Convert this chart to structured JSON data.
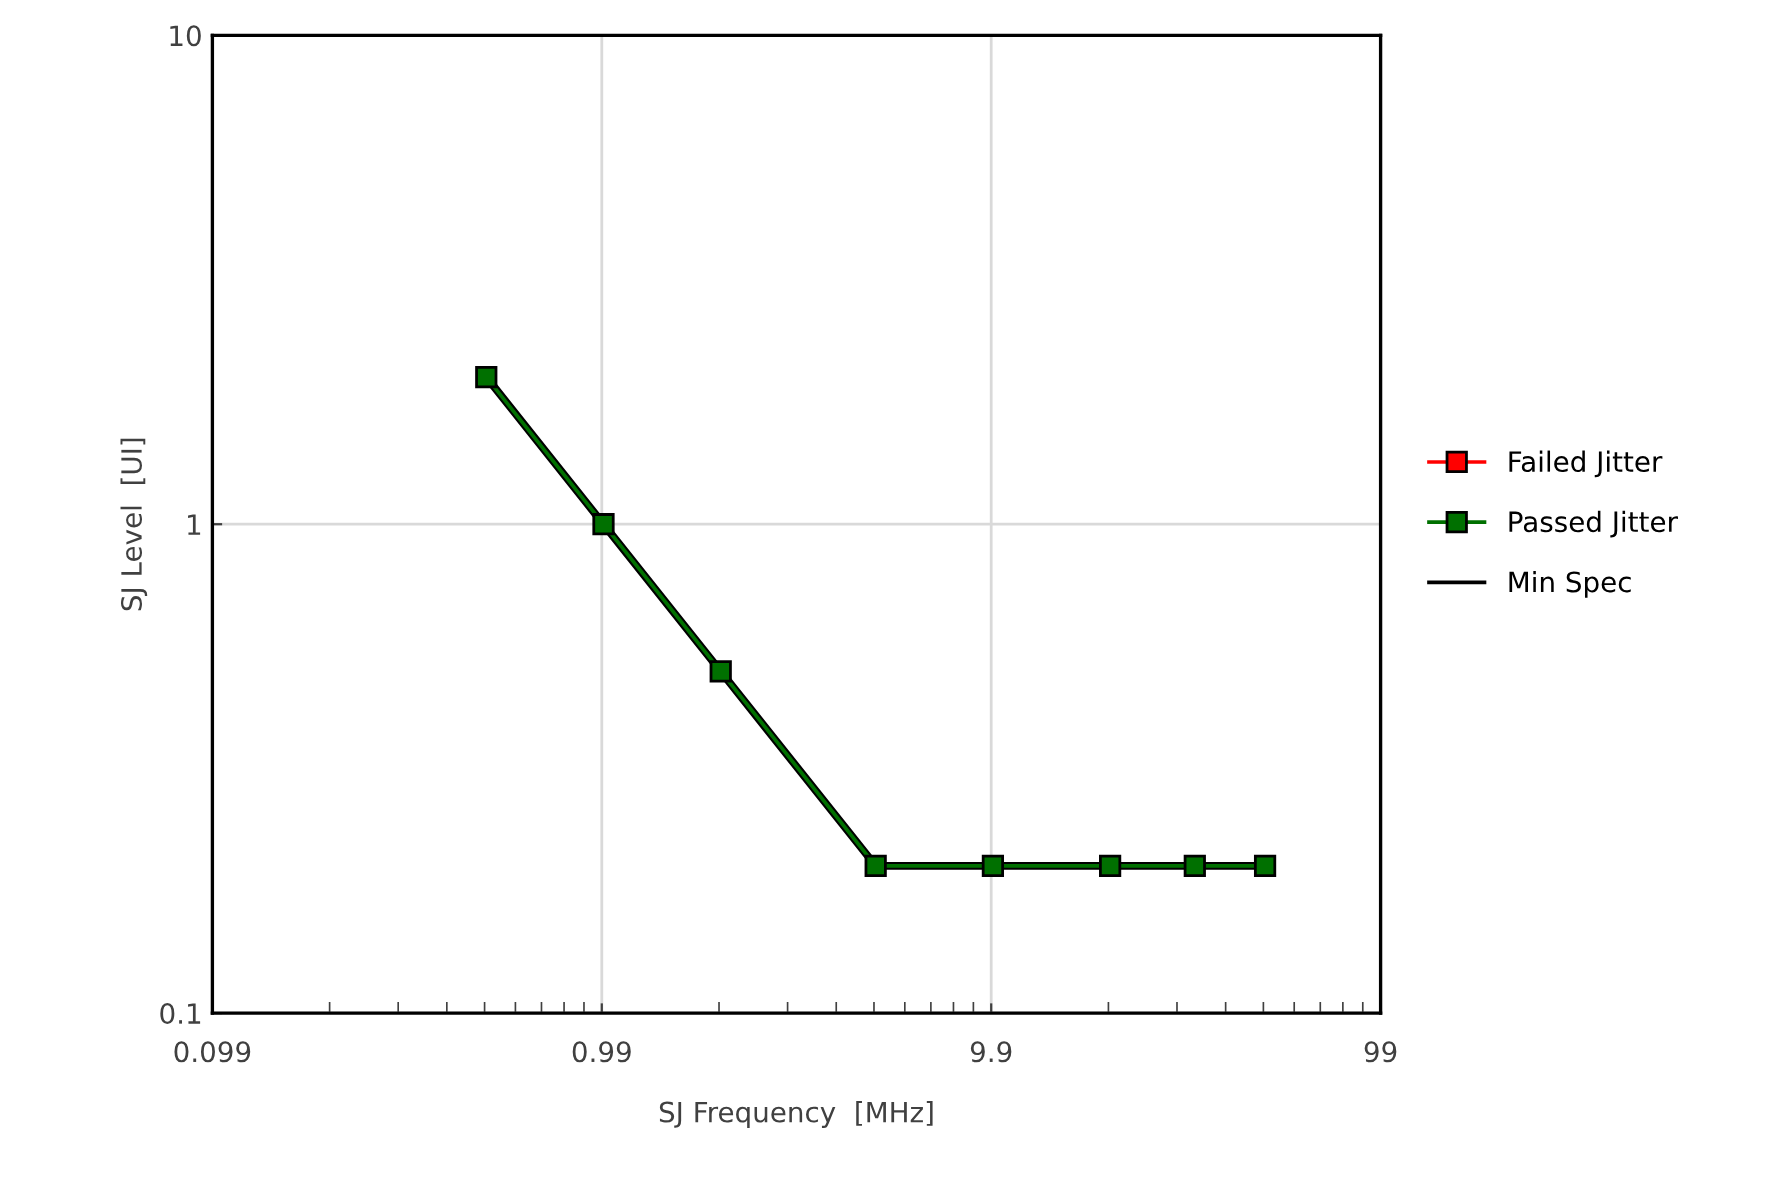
{
  "chart_data": {
    "type": "line",
    "xlabel": "SJ Frequency  [MHz]",
    "ylabel": "SJ Level  [UI]",
    "log": "xy",
    "x": [
      0.5,
      1,
      2,
      5,
      10,
      20,
      33,
      50
    ],
    "xlim": [
      0.099,
      99
    ],
    "xticks": [
      0.099,
      0.99,
      9.9,
      99
    ],
    "ylim": [
      0.1,
      10
    ],
    "yticks": [
      0.1,
      1,
      10
    ],
    "grid": true,
    "legend": "right",
    "series": [
      {
        "name": "Failed Jitter",
        "color": "#ff0000",
        "marker": "square",
        "values": [
          null,
          null,
          null,
          null,
          null,
          null,
          null,
          null
        ]
      },
      {
        "name": "Passed Jitter",
        "color": "#007000",
        "marker": "square",
        "values": [
          2,
          1,
          0.5,
          0.2,
          0.2,
          0.2,
          0.2,
          0.2
        ]
      },
      {
        "name": "Min Spec",
        "color": "#000000",
        "marker": "none",
        "values": [
          2,
          1,
          0.5,
          0.2,
          0.2,
          0.2,
          0.2,
          0.2
        ]
      }
    ]
  }
}
